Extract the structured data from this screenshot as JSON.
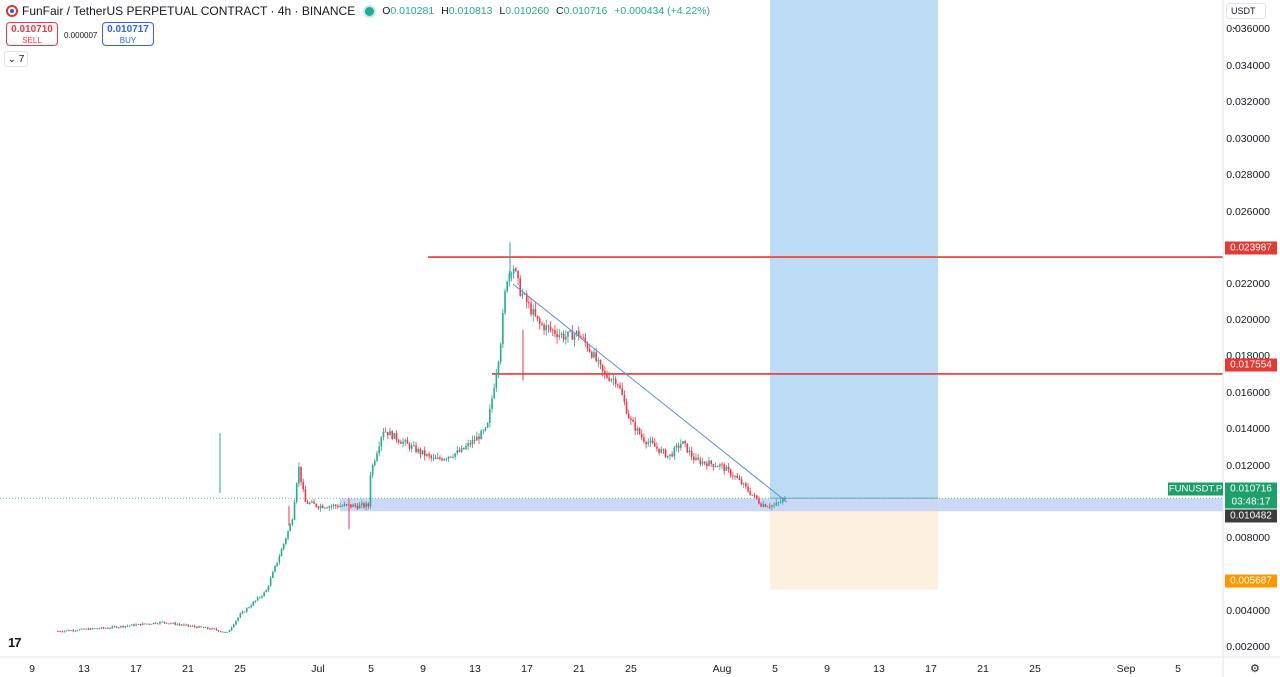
{
  "header": {
    "title": "FunFair / TetherUS PERPETUAL CONTRACT · 4h · BINANCE",
    "ohlc": [
      {
        "k": "O",
        "v": "0.010281"
      },
      {
        "k": "H",
        "v": "0.010813"
      },
      {
        "k": "L",
        "v": "0.010260"
      },
      {
        "k": "C",
        "v": "0.010716"
      },
      {
        "k": "",
        "v": "+0.000434 (+4.22%)"
      }
    ]
  },
  "trade": {
    "sell_price": "0.010710",
    "sell_label": "SELL",
    "buy_price": "0.010717",
    "buy_label": "BUY",
    "spread": "0.000007"
  },
  "indicators_toggle": "7",
  "currency": "USDT",
  "price_axis": [
    "0.036000",
    "0.034000",
    "0.032000",
    "0.030000",
    "0.028000",
    "0.026000",
    "0.022000",
    "0.020000",
    "0.018000",
    "0.016000",
    "0.014000",
    "0.012000",
    "0.008000",
    "0.004000",
    "0.002000"
  ],
  "time_axis": [
    "9",
    "13",
    "17",
    "21",
    "25",
    "Jul",
    "5",
    "9",
    "13",
    "17",
    "21",
    "25",
    "Aug",
    "5",
    "9",
    "13",
    "17",
    "21",
    "25",
    "Sep",
    "5"
  ],
  "price_tags": {
    "resistance_high": "0.023987",
    "resistance_mid": "0.017554",
    "symbol": "FUNUSDT.P",
    "current": "0.010716",
    "countdown": "03:48:17",
    "support": "0.010482",
    "target_low": "0.005687"
  },
  "colors": {
    "up": "#22ab94",
    "down": "#f23645",
    "level_line": "#e53935",
    "trendline": "#5b8def",
    "support_zone": "#c6d4f7",
    "long_zone": "#bcdcf5",
    "risk_zone": "#fdf0e0",
    "orange": "#ff9800"
  },
  "chart_data": {
    "type": "candlestick",
    "symbol": "FUNUSDT.P",
    "timeframe": "4h",
    "ylim": [
      0.0016,
      0.0368
    ],
    "horizontal_levels": [
      0.023987,
      0.017554
    ],
    "support_zone": [
      0.01,
      0.0107
    ],
    "long_position": {
      "entry": 0.010716,
      "target": 0.0368,
      "stop": 0.005687
    },
    "trendline": {
      "from": [
        "Jul 15",
        0.0225
      ],
      "to": [
        "Aug 5",
        0.0105
      ]
    },
    "close_path": [
      [
        "Jun 5",
        0.0034
      ],
      [
        "Jun 9",
        0.0036
      ],
      [
        "Jun 13",
        0.0039
      ],
      [
        "Jun 17",
        0.0035
      ],
      [
        "Jun 18",
        0.0033
      ],
      [
        "Jun 19",
        0.0043
      ],
      [
        "Jun 21",
        0.0056
      ],
      [
        "Jun 22",
        0.0075
      ],
      [
        "Jun 23",
        0.0095
      ],
      [
        "Jun 23.5",
        0.0125
      ],
      [
        "Jun 24",
        0.0105
      ],
      [
        "Jun 25",
        0.0103
      ],
      [
        "Jun 29",
        0.0103
      ],
      [
        "Jul 3",
        0.0103
      ],
      [
        "Jul 4",
        0.012
      ],
      [
        "Jul 5",
        0.0145
      ],
      [
        "Jul 7",
        0.0136
      ],
      [
        "Jul 9",
        0.0128
      ],
      [
        "Jul 11",
        0.0133
      ],
      [
        "Jul 13",
        0.0145
      ],
      [
        "Jul 14",
        0.019
      ],
      [
        "Jul 14.5",
        0.0228
      ],
      [
        "Jul 15",
        0.0236
      ],
      [
        "Jul 15.5",
        0.0222
      ],
      [
        "Jul 17",
        0.0203
      ],
      [
        "Jul 19",
        0.0196
      ],
      [
        "Jul 20",
        0.0198
      ],
      [
        "Jul 21",
        0.0188
      ],
      [
        "Jul 22",
        0.0175
      ],
      [
        "Jul 23",
        0.0172
      ],
      [
        "Jul 24",
        0.015
      ],
      [
        "Jul 25",
        0.014
      ],
      [
        "Jul 27",
        0.013
      ],
      [
        "Jul 28",
        0.0138
      ],
      [
        "Jul 29",
        0.0128
      ],
      [
        "Jul 31",
        0.0125
      ],
      [
        "Aug 1",
        0.0119
      ],
      [
        "Aug 3",
        0.0104
      ],
      [
        "Aug 4",
        0.0103
      ],
      [
        "Aug 5",
        0.010716
      ]
    ]
  }
}
